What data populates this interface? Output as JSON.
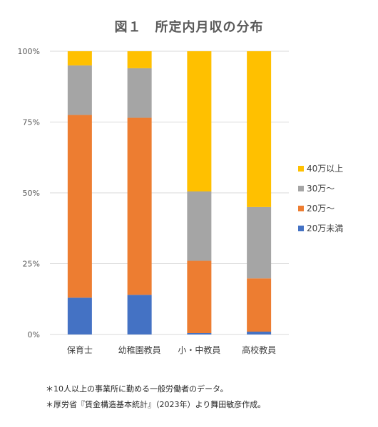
{
  "chart_data": {
    "type": "bar",
    "stacked": true,
    "percent_stacked": true,
    "title": "図１　所定内月収の分布",
    "categories": [
      "保育士",
      "幼稚園教員",
      "小・中教員",
      "高校教員"
    ],
    "series": [
      {
        "name": "20万未満",
        "color": "#4472c4",
        "values": [
          13,
          14,
          0.5,
          1
        ]
      },
      {
        "name": "20万～",
        "color": "#ed7d31",
        "values": [
          64.5,
          62.5,
          25.5,
          18.8
        ]
      },
      {
        "name": "30万～",
        "color": "#a5a5a5",
        "values": [
          17.5,
          17.5,
          24.5,
          25.2
        ]
      },
      {
        "name": "40万以上",
        "color": "#ffc000",
        "values": [
          5,
          6,
          49.5,
          55
        ]
      }
    ],
    "ylim": [
      0,
      100
    ],
    "yticks": [
      "0%",
      "25%",
      "50%",
      "75%",
      "100%"
    ],
    "ytick_values": [
      0,
      25,
      50,
      75,
      100
    ],
    "grid": true,
    "legend_position": "right",
    "legend_order": [
      "40万以上",
      "30万～",
      "20万～",
      "20万未満"
    ]
  },
  "notes": [
    "＊10人以上の事業所に勤める一般労働者のデータ。",
    "＊厚労省『賃金構造基本統計』（2023年）より舞田敏彦作成。"
  ]
}
